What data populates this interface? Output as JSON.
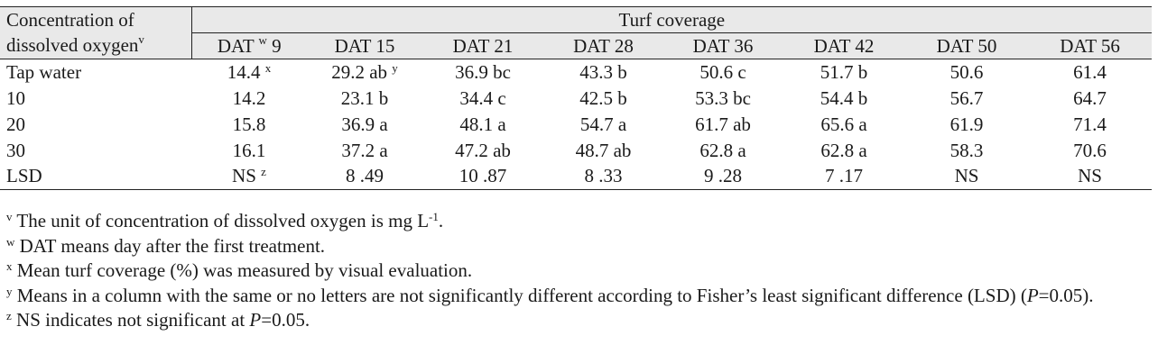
{
  "table": {
    "row_header_line1": "Concentration of",
    "row_header_line2": "dissolved oxygen",
    "row_header_note": "v",
    "group_header": "Turf coverage",
    "columns": [
      {
        "label": "DAT",
        "note": "w",
        "suffix": "9"
      },
      {
        "label": "DAT 15"
      },
      {
        "label": "DAT 21"
      },
      {
        "label": "DAT 28"
      },
      {
        "label": "DAT 36"
      },
      {
        "label": "DAT 42"
      },
      {
        "label": "DAT 50"
      },
      {
        "label": "DAT 56"
      }
    ],
    "rows": [
      {
        "label": "Tap water",
        "cells": [
          {
            "value": "14.4",
            "note": "x"
          },
          {
            "value": "29.2 ab",
            "note": "y"
          },
          {
            "value": "36.9 bc"
          },
          {
            "value": "43.3 b"
          },
          {
            "value": "50.6 c"
          },
          {
            "value": "51.7 b"
          },
          {
            "value": "50.6"
          },
          {
            "value": "61.4"
          }
        ]
      },
      {
        "label": "10",
        "cells": [
          {
            "value": "14.2"
          },
          {
            "value": "23.1 b"
          },
          {
            "value": "34.4 c"
          },
          {
            "value": "42.5 b"
          },
          {
            "value": "53.3 bc"
          },
          {
            "value": "54.4 b"
          },
          {
            "value": "56.7"
          },
          {
            "value": "64.7"
          }
        ]
      },
      {
        "label": "20",
        "cells": [
          {
            "value": "15.8"
          },
          {
            "value": "36.9 a"
          },
          {
            "value": "48.1 a"
          },
          {
            "value": "54.7 a"
          },
          {
            "value": "61.7 ab"
          },
          {
            "value": "65.6 a"
          },
          {
            "value": "61.9"
          },
          {
            "value": "71.4"
          }
        ]
      },
      {
        "label": "30",
        "cells": [
          {
            "value": "16.1"
          },
          {
            "value": "37.2 a"
          },
          {
            "value": "47.2 ab"
          },
          {
            "value": "48.7 ab"
          },
          {
            "value": "62.8 a"
          },
          {
            "value": "62.8 a"
          },
          {
            "value": "58.3"
          },
          {
            "value": "70.6"
          }
        ]
      },
      {
        "label": "LSD",
        "cells": [
          {
            "value": "NS",
            "note": "z"
          },
          {
            "value": "8 .49"
          },
          {
            "value": "10 .87"
          },
          {
            "value": "8 .33"
          },
          {
            "value": "9 .28"
          },
          {
            "value": "7 .17"
          },
          {
            "value": "NS"
          },
          {
            "value": "NS"
          }
        ]
      }
    ]
  },
  "footnotes": {
    "v": {
      "mark": "v",
      "text": "The unit of concentration of dissolved oxygen is mg L",
      "exp": "-1",
      "end": "."
    },
    "w": {
      "mark": "w",
      "text": "DAT means day after the first treatment."
    },
    "x": {
      "mark": "x",
      "text": "Mean turf coverage (%) was measured by visual evaluation."
    },
    "y": {
      "mark": "y",
      "text": "Means in a column with the same or no letters are not significantly different according to Fisher’s least significant difference (LSD) (",
      "p": "P",
      "tail": "=0.05)."
    },
    "z": {
      "mark": "z",
      "text": "NS indicates not significant at ",
      "p": "P",
      "tail": "=0.05."
    }
  }
}
